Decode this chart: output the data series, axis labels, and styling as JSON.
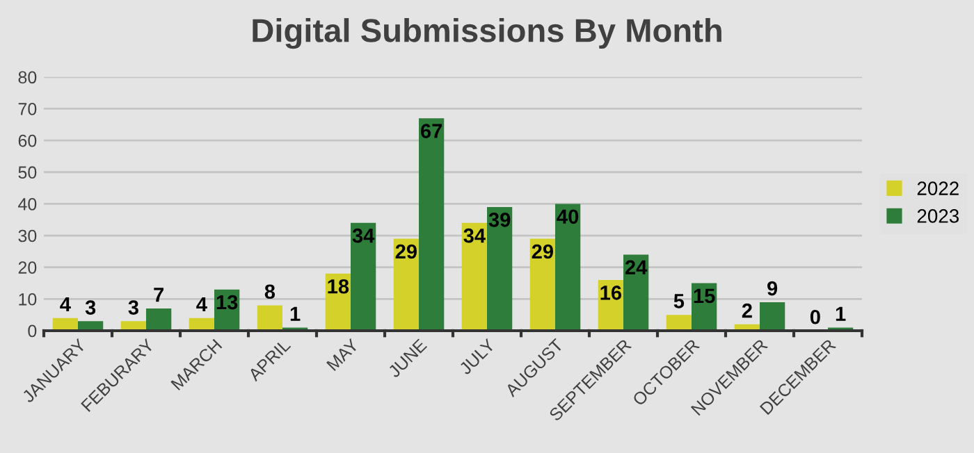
{
  "chart_data": {
    "type": "bar",
    "title": "Digital Submissions By Month",
    "categories": [
      "JANUARY",
      "FEBURARY",
      "MARCH",
      "APRIL",
      "MAY",
      "JUNE",
      "JULY",
      "AUGUST",
      "SEPTEMBER",
      "OCTOBER",
      "NOVEMBER",
      "DECEMBER"
    ],
    "series": [
      {
        "name": "2022",
        "color": "#d4d12a",
        "values": [
          4,
          3,
          4,
          8,
          18,
          29,
          34,
          29,
          16,
          5,
          2,
          0
        ]
      },
      {
        "name": "2023",
        "color": "#2e7d3a",
        "values": [
          3,
          7,
          13,
          1,
          34,
          67,
          39,
          40,
          24,
          15,
          9,
          1
        ]
      }
    ],
    "ylim": [
      0,
      80
    ],
    "yticks": [
      0,
      10,
      20,
      30,
      40,
      50,
      60,
      70,
      80
    ],
    "grid": "y",
    "legend": "right",
    "data_labels": true
  }
}
